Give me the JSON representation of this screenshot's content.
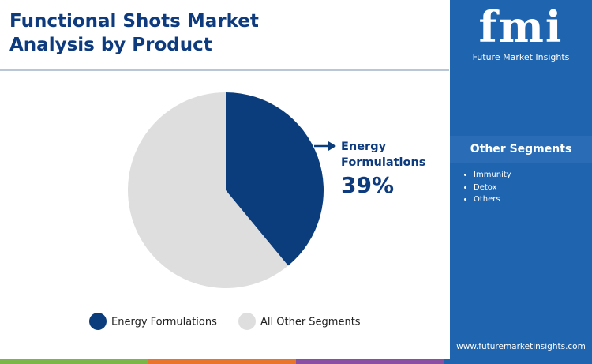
{
  "chart_data": {
    "type": "pie",
    "title": "Functional Shots Market Analysis by Product",
    "categories": [
      "Energy Formulations",
      "All Other Segments"
    ],
    "values": [
      39,
      61
    ],
    "value_labels": [
      "39%",
      null
    ],
    "colors": [
      "#0b3d7c",
      "#dedede"
    ]
  },
  "brand": {
    "logo": "fmi",
    "name": "Future Market Insights",
    "url": "www.futuremarketinsights.com"
  },
  "sidebar": {
    "heading": "Other Segments",
    "items": [
      "Immunity",
      "Detox",
      "Others"
    ]
  }
}
